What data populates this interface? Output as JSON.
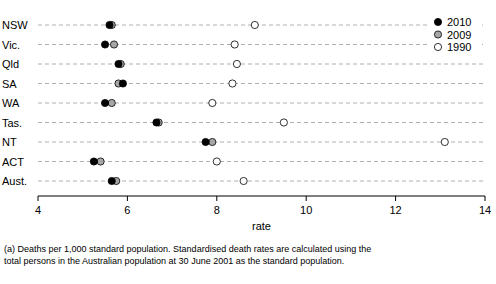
{
  "chart_data": {
    "type": "dot",
    "orientation": "horizontal",
    "categories": [
      "NSW",
      "Vic.",
      "Qld",
      "SA",
      "WA",
      "Tas.",
      "NT",
      "ACT",
      "Aust."
    ],
    "series": [
      {
        "name": "2010",
        "color": "#000000",
        "marker": "circle",
        "values": [
          5.6,
          5.5,
          5.8,
          5.9,
          5.5,
          6.65,
          7.75,
          5.25,
          5.65
        ]
      },
      {
        "name": "2009",
        "color": "#a6a6a6",
        "marker": "circle",
        "values": [
          5.65,
          5.7,
          5.85,
          5.8,
          5.65,
          6.7,
          7.9,
          5.4,
          5.75
        ]
      },
      {
        "name": "1990",
        "color": "#ffffff",
        "marker": "circle",
        "values": [
          8.85,
          8.4,
          8.45,
          8.35,
          7.9,
          9.5,
          13.1,
          8.0,
          8.6
        ]
      }
    ],
    "x_label": "rate",
    "xlim": [
      4,
      14
    ],
    "xticks": [
      4,
      6,
      8,
      10,
      12,
      14
    ],
    "grid": true,
    "legend": "top-right",
    "annotations": [
      "(a) Deaths per 1,000 standard population. Standardised death rates are calculated using the",
      "total persons in the Australian population at 30 June 2001 as the standard population."
    ]
  }
}
